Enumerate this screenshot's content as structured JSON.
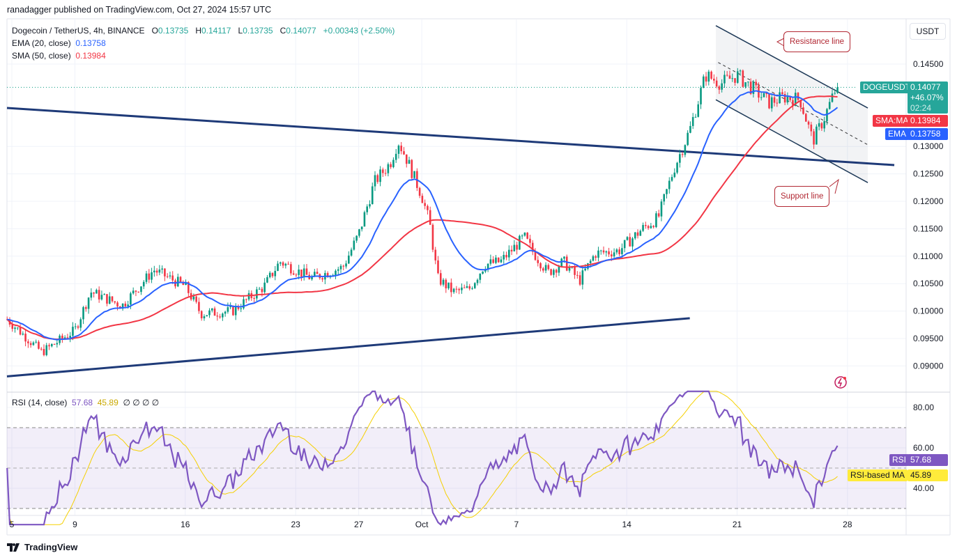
{
  "header": {
    "published": "ranadagger published on TradingView.com, Oct 27, 2024 15:57 UTC"
  },
  "legend": {
    "symbol": "Dogecoin / TetherUS, 4h, BINANCE",
    "open_label": "O",
    "open": "0.13735",
    "high_label": "H",
    "high": "0.14117",
    "low_label": "L",
    "low": "0.13735",
    "close_label": "C",
    "close": "0.14077",
    "change": "+0.00343 (+2.50%)",
    "ema_label": "EMA (20, close)",
    "ema_value": "0.13758",
    "sma_label": "SMA (50, close)",
    "sma_value": "0.13984"
  },
  "price_axis": {
    "currency": "USDT",
    "ticks": [
      "0.14500",
      "0.13000",
      "0.12500",
      "0.12000",
      "0.11500",
      "0.11000",
      "0.10500",
      "0.10000",
      "0.09500",
      "0.09000"
    ],
    "tick_values": [
      0.145,
      0.13,
      0.125,
      0.12,
      0.115,
      0.11,
      0.105,
      0.1,
      0.095,
      0.09
    ]
  },
  "tags": {
    "symbol": "DOGEUSDT",
    "price": "0.14077",
    "change_pct": "+46.07%",
    "countdown": "02:24",
    "sma_label": "SMA:MA",
    "sma_value": "0.13984",
    "ema_label": "EMA",
    "ema_value": "0.13758",
    "rsi_label": "RSI",
    "rsi_value": "57.68",
    "rsi_ma_label": "RSI-based MA",
    "rsi_ma_value": "45.89"
  },
  "annotations": {
    "resistance": "Resistance line",
    "support": "Support line"
  },
  "rsi": {
    "legend": "RSI (14, close)",
    "value": "57.68",
    "ma_value": "45.89",
    "extra": "∅ ∅ ∅ ∅",
    "ticks": [
      "80.00",
      "60.00",
      "40.00"
    ],
    "tick_values": [
      80,
      60,
      40
    ],
    "upper_band": 70,
    "lower_band": 30,
    "mid": 50
  },
  "time_axis": {
    "labels": [
      "5",
      "9",
      "16",
      "23",
      "27",
      "Oct",
      "7",
      "14",
      "21",
      "28"
    ],
    "days": [
      0,
      4,
      11,
      18,
      22,
      26,
      32,
      39,
      46,
      53
    ]
  },
  "footer": {
    "brand": "TradingView"
  },
  "colors": {
    "up": "#089981",
    "down": "#f23645",
    "ema": "#2962ff",
    "sma": "#f23645",
    "rsi": "#7e57c2",
    "rsi_ma": "#f5d000",
    "trendline": "#1e3a78"
  },
  "chart_data": {
    "type": "candlestick",
    "title": "Dogecoin / TetherUS, 4h, BINANCE",
    "x_unit": "days since Sep 5, 2024",
    "ylim": [
      0.087,
      0.153
    ],
    "price_path": [
      [
        -0.3,
        0.0985
      ],
      [
        1.9,
        0.0925
      ],
      [
        4,
        0.0965
      ],
      [
        5,
        0.1035
      ],
      [
        7,
        0.101
      ],
      [
        9,
        0.1075
      ],
      [
        11,
        0.1045
      ],
      [
        12,
        0.0995
      ],
      [
        14,
        0.1
      ],
      [
        16,
        0.1045
      ],
      [
        17,
        0.109
      ],
      [
        19,
        0.106
      ],
      [
        21,
        0.108
      ],
      [
        22,
        0.114
      ],
      [
        23,
        0.1235
      ],
      [
        24,
        0.127
      ],
      [
        24.5,
        0.131
      ],
      [
        25,
        0.128
      ],
      [
        26,
        0.121
      ],
      [
        26.5,
        0.116
      ],
      [
        27,
        0.106
      ],
      [
        28,
        0.1035
      ],
      [
        29,
        0.104
      ],
      [
        30,
        0.1085
      ],
      [
        31,
        0.109
      ],
      [
        32.5,
        0.1135
      ],
      [
        33,
        0.111
      ],
      [
        34,
        0.107
      ],
      [
        35,
        0.109
      ],
      [
        36,
        0.1055
      ],
      [
        37,
        0.1105
      ],
      [
        38.5,
        0.111
      ],
      [
        40,
        0.115
      ],
      [
        41,
        0.117
      ],
      [
        42,
        0.126
      ],
      [
        43,
        0.133
      ],
      [
        44,
        0.143
      ],
      [
        45,
        0.1415
      ],
      [
        46,
        0.143
      ],
      [
        47,
        0.1405
      ],
      [
        48,
        0.138
      ],
      [
        49,
        0.139
      ],
      [
        50,
        0.1385
      ],
      [
        50.8,
        0.131
      ],
      [
        51.5,
        0.135
      ],
      [
        52.3,
        0.1408
      ]
    ],
    "trendlines": [
      {
        "name": "descending-support-line",
        "from": [
          -0.31,
          0.137
        ],
        "to": [
          55.97,
          0.1266
        ]
      },
      {
        "name": "ascending-support-line",
        "from": [
          -0.31,
          0.0881
        ],
        "to": [
          43.0,
          0.0987
        ]
      },
      {
        "name": "channel-upper-resistance",
        "from": [
          44.65,
          0.152
        ],
        "to": [
          54.29,
          0.137
        ]
      },
      {
        "name": "channel-lower-support",
        "from": [
          44.65,
          0.1385
        ],
        "to": [
          54.29,
          0.1234
        ]
      },
      {
        "name": "channel-midline",
        "from": [
          44.8,
          0.1453
        ],
        "to": [
          54.29,
          0.1303
        ],
        "dashed": true
      }
    ],
    "last_close": 0.14077
  }
}
